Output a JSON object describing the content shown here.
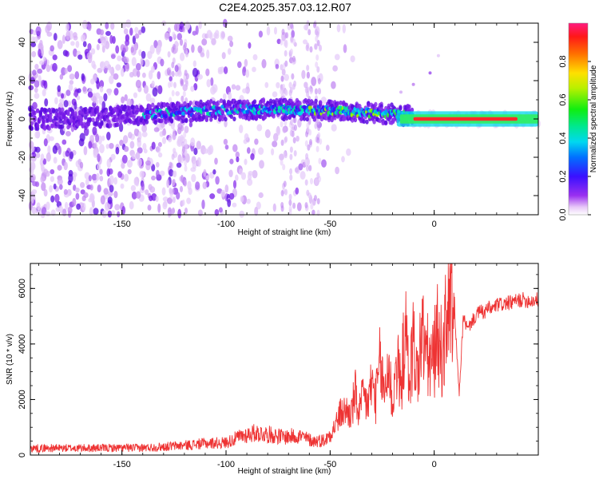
{
  "title": "C2E4.2025.357.03.12.R07",
  "colors": {
    "snr_line": "#ee3333",
    "background": "#ffffff",
    "spectro_low": "#7a10ee",
    "spectro_mid": "#00e8d0",
    "spectro_high": "#ff2a2a"
  },
  "chart_data": [
    {
      "type": "heatmap",
      "title": "C2E4.2025.357.03.12.R07",
      "xlabel": "Height of straight line (km)",
      "ylabel": "Frequency (Hz)",
      "colorbar_label": "Normalized spectral amplitude",
      "xlim": [
        -194,
        50
      ],
      "ylim": [
        -50,
        50
      ],
      "clim": [
        0,
        1
      ],
      "x_ticks": [
        -150,
        -100,
        -50,
        0
      ],
      "y_ticks": [
        -40,
        -20,
        0,
        20,
        40
      ],
      "colorbar_ticks": [
        0.0,
        0.2,
        0.4,
        0.6,
        0.8
      ],
      "colorbar_tick_labels": [
        "0.0",
        "0.2",
        "0.4",
        "0.6",
        "0.8"
      ],
      "features": {
        "carrier_frequency_hz": 0,
        "carrier_band_halfwidth_hz_at_right": 4,
        "doppler_shift_peak_hz": 5,
        "scatter_region_xmax_km": -50,
        "strong_carrier_from_km": -10
      },
      "grid": false
    },
    {
      "type": "line",
      "xlabel": "Height of straight line (km)",
      "ylabel": "SNR (10 * v/v)",
      "xlim": [
        -194,
        50
      ],
      "ylim": [
        0,
        6900
      ],
      "x_ticks": [
        -150,
        -100,
        -50,
        0
      ],
      "y_ticks": [
        0,
        2000,
        4000,
        6000
      ],
      "series": [
        {
          "x": [
            -194,
            -180,
            -160,
            -140,
            -130,
            -120,
            -110,
            -100,
            -92,
            -86,
            -80,
            -72,
            -65,
            -58,
            -52,
            -48,
            -45,
            -42,
            -40,
            -38,
            -36,
            -34,
            -32,
            -30,
            -28,
            -26,
            -24,
            -22,
            -20,
            -18,
            -16,
            -14,
            -12,
            -10,
            -8,
            -6,
            -4,
            -2,
            0,
            2,
            4,
            6,
            8,
            9,
            10,
            12,
            14,
            16,
            18,
            20,
            22,
            24,
            26,
            28,
            30,
            34,
            38,
            42,
            46,
            50
          ],
          "y": [
            250,
            250,
            250,
            260,
            300,
            350,
            420,
            450,
            700,
            800,
            750,
            650,
            700,
            500,
            550,
            1000,
            1500,
            1600,
            1400,
            2200,
            1500,
            2100,
            1800,
            2600,
            2000,
            3300,
            2200,
            3300,
            1800,
            3400,
            2400,
            4600,
            2600,
            4100,
            2800,
            4400,
            3800,
            3200,
            3600,
            4500,
            3400,
            5000,
            6200,
            4000,
            4800,
            2200,
            5000,
            4500,
            4800,
            5000,
            5200,
            5100,
            5300,
            5250,
            5400,
            5450,
            5500,
            5600,
            5550,
            5600
          ]
        }
      ],
      "grid": false
    }
  ]
}
